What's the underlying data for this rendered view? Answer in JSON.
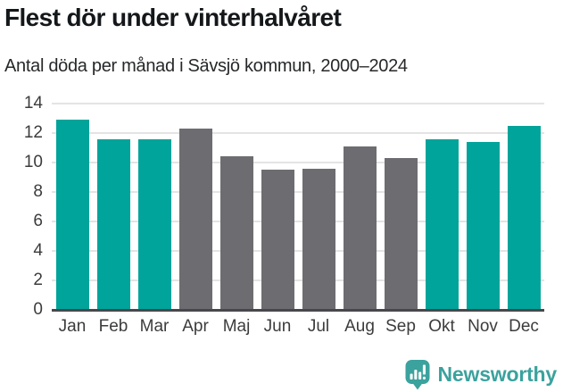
{
  "title": "Flest dör under vinterhalvåret",
  "subtitle": "Antal döda per månad i Sävsjö kommun, 2000–2024",
  "brand": {
    "name": "Newsworthy",
    "color": "#3ba29d",
    "icon": "speech-bubble-bar-chart-exclamation-icon"
  },
  "colors": {
    "winter_bar": "#00a49a",
    "summer_bar": "#6d6d71",
    "gridline": "#e4e4e4",
    "axis_line": "#48484c",
    "tick_text": "#3c3c3c"
  },
  "chart_data": {
    "type": "bar",
    "title": "Flest dör under vinterhalvåret",
    "subtitle": "Antal döda per månad i Sävsjö kommun, 2000–2024",
    "categories": [
      "Jan",
      "Feb",
      "Mar",
      "Apr",
      "Maj",
      "Jun",
      "Jul",
      "Aug",
      "Sep",
      "Okt",
      "Nov",
      "Dec"
    ],
    "values": [
      12.9,
      11.6,
      11.6,
      12.3,
      10.4,
      9.5,
      9.6,
      11.1,
      10.3,
      11.6,
      11.4,
      12.5
    ],
    "highlighted": [
      true,
      true,
      true,
      false,
      false,
      false,
      false,
      false,
      false,
      true,
      true,
      true
    ],
    "highlight_meaning": "winter half-year months shown in teal, summer months in gray",
    "xlabel": "",
    "ylabel": "",
    "ylim": [
      0,
      14
    ],
    "yticks": [
      0,
      2,
      4,
      6,
      8,
      10,
      12,
      14
    ],
    "grid": "horizontal",
    "legend": "none"
  }
}
